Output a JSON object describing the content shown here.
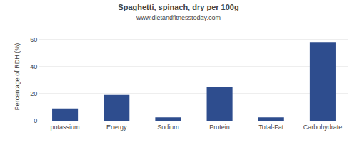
{
  "chart_data": {
    "type": "bar",
    "title": "Spaghetti, spinach, dry per 100g",
    "subtitle": "www.dietandfitnesstoday.com",
    "categories": [
      "potassium",
      "Energy",
      "Sodium",
      "Protein",
      "Total-Fat",
      "Carbohydrate"
    ],
    "values": [
      9,
      19,
      2.5,
      25,
      2.5,
      58
    ],
    "color": "#2e4d8e",
    "ylabel": "Percentage of RDH (%)",
    "ylim": [
      0,
      65
    ],
    "yticks": [
      0,
      20,
      40,
      60
    ],
    "grid": true
  }
}
